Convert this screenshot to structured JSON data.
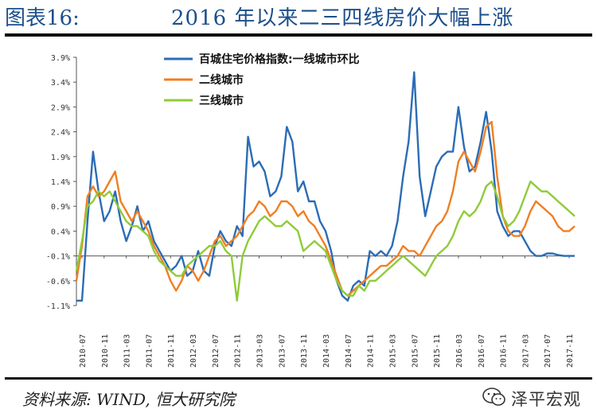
{
  "header": {
    "figure_number": "图表16:",
    "title": "2016 年以来二三四线房价大幅上涨"
  },
  "footer": {
    "source": "资料来源: WIND, 恒大研究院"
  },
  "brand": {
    "name": "泽平宏观",
    "icon": "wechat-icon"
  },
  "chart_data": {
    "type": "line",
    "title": "",
    "xlabel": "",
    "ylabel": "",
    "ylim": [
      -1.1,
      3.9
    ],
    "y_ticks": [
      3.9,
      3.4,
      2.9,
      2.4,
      1.9,
      1.4,
      0.9,
      0.4,
      -0.1,
      -0.6,
      -1.1
    ],
    "y_tick_labels": [
      "3.9%",
      "3.4%",
      "2.9%",
      "2.4%",
      "1.9%",
      "1.4%",
      "0.9%",
      "0.4%",
      "-0.1%",
      "-0.6%",
      "-1.1%"
    ],
    "x_ticks": [
      "2010-07",
      "2010-11",
      "2011-03",
      "2011-07",
      "2011-11",
      "2012-03",
      "2012-07",
      "2012-11",
      "2013-03",
      "2013-07",
      "2013-11",
      "2014-03",
      "2014-07",
      "2014-11",
      "2015-03",
      "2015-07",
      "2015-11",
      "2016-03",
      "2016-07",
      "2016-11",
      "2017-03",
      "2017-07",
      "2017-11"
    ],
    "x_start": "2010-06",
    "x_end": "2017-12",
    "legend_position": "top-center",
    "grid": false,
    "series": [
      {
        "name": "百城住宅价格指数:一线城市环比",
        "color": "#2b6cb5",
        "points": [
          [
            "2010-06",
            -1.0
          ],
          [
            "2010-07",
            -1.0
          ],
          [
            "2010-08",
            0.6
          ],
          [
            "2010-09",
            2.0
          ],
          [
            "2010-10",
            1.2
          ],
          [
            "2010-11",
            0.6
          ],
          [
            "2010-12",
            0.8
          ],
          [
            "2011-01",
            1.2
          ],
          [
            "2011-02",
            0.6
          ],
          [
            "2011-03",
            0.2
          ],
          [
            "2011-04",
            0.5
          ],
          [
            "2011-05",
            0.9
          ],
          [
            "2011-06",
            0.4
          ],
          [
            "2011-07",
            0.6
          ],
          [
            "2011-08",
            0.2
          ],
          [
            "2011-09",
            0.0
          ],
          [
            "2011-10",
            -0.2
          ],
          [
            "2011-11",
            -0.4
          ],
          [
            "2011-12",
            -0.3
          ],
          [
            "2012-01",
            -0.1
          ],
          [
            "2012-02",
            -0.5
          ],
          [
            "2012-03",
            -0.4
          ],
          [
            "2012-04",
            0.0
          ],
          [
            "2012-05",
            -0.4
          ],
          [
            "2012-06",
            -0.5
          ],
          [
            "2012-07",
            0.1
          ],
          [
            "2012-08",
            0.4
          ],
          [
            "2012-09",
            0.2
          ],
          [
            "2012-10",
            0.1
          ],
          [
            "2012-11",
            0.5
          ],
          [
            "2012-12",
            0.3
          ],
          [
            "2013-01",
            2.3
          ],
          [
            "2013-02",
            1.7
          ],
          [
            "2013-03",
            1.8
          ],
          [
            "2013-04",
            1.6
          ],
          [
            "2013-05",
            1.1
          ],
          [
            "2013-06",
            1.2
          ],
          [
            "2013-07",
            1.5
          ],
          [
            "2013-08",
            2.5
          ],
          [
            "2013-09",
            2.2
          ],
          [
            "2013-10",
            1.2
          ],
          [
            "2013-11",
            1.4
          ],
          [
            "2013-12",
            1.0
          ],
          [
            "2014-01",
            1.0
          ],
          [
            "2014-02",
            0.6
          ],
          [
            "2014-03",
            0.4
          ],
          [
            "2014-04",
            0.0
          ],
          [
            "2014-05",
            -0.6
          ],
          [
            "2014-06",
            -0.9
          ],
          [
            "2014-07",
            -1.0
          ],
          [
            "2014-08",
            -0.7
          ],
          [
            "2014-09",
            -0.6
          ],
          [
            "2014-10",
            -0.7
          ],
          [
            "2014-11",
            0.0
          ],
          [
            "2014-12",
            -0.1
          ],
          [
            "2015-01",
            0.0
          ],
          [
            "2015-02",
            -0.1
          ],
          [
            "2015-03",
            0.1
          ],
          [
            "2015-04",
            0.6
          ],
          [
            "2015-05",
            1.5
          ],
          [
            "2015-06",
            2.2
          ],
          [
            "2015-07",
            3.6
          ],
          [
            "2015-08",
            1.5
          ],
          [
            "2015-09",
            0.7
          ],
          [
            "2015-10",
            1.2
          ],
          [
            "2015-11",
            1.7
          ],
          [
            "2015-12",
            1.9
          ],
          [
            "2016-01",
            2.0
          ],
          [
            "2016-02",
            2.0
          ],
          [
            "2016-03",
            2.9
          ],
          [
            "2016-04",
            2.1
          ],
          [
            "2016-05",
            1.6
          ],
          [
            "2016-06",
            1.7
          ],
          [
            "2016-07",
            2.2
          ],
          [
            "2016-08",
            2.8
          ],
          [
            "2016-09",
            2.0
          ],
          [
            "2016-10",
            0.8
          ],
          [
            "2016-11",
            0.5
          ],
          [
            "2016-12",
            0.3
          ],
          [
            "2017-01",
            0.4
          ],
          [
            "2017-02",
            0.4
          ],
          [
            "2017-03",
            0.2
          ],
          [
            "2017-04",
            0.0
          ],
          [
            "2017-05",
            -0.1
          ],
          [
            "2017-06",
            -0.1
          ],
          [
            "2017-07",
            -0.05
          ],
          [
            "2017-08",
            -0.05
          ],
          [
            "2017-09",
            -0.08
          ],
          [
            "2017-10",
            -0.1
          ],
          [
            "2017-11",
            -0.1
          ],
          [
            "2017-12",
            -0.1
          ]
        ]
      },
      {
        "name": "二线城市",
        "color": "#f07f23",
        "points": [
          [
            "2010-06",
            -0.6
          ],
          [
            "2010-07",
            0.1
          ],
          [
            "2010-08",
            1.1
          ],
          [
            "2010-09",
            1.3
          ],
          [
            "2010-10",
            1.1
          ],
          [
            "2010-11",
            1.2
          ],
          [
            "2010-12",
            1.4
          ],
          [
            "2011-01",
            1.6
          ],
          [
            "2011-02",
            1.0
          ],
          [
            "2011-03",
            0.8
          ],
          [
            "2011-04",
            0.6
          ],
          [
            "2011-05",
            0.8
          ],
          [
            "2011-06",
            0.6
          ],
          [
            "2011-07",
            0.4
          ],
          [
            "2011-08",
            0.1
          ],
          [
            "2011-09",
            -0.1
          ],
          [
            "2011-10",
            -0.3
          ],
          [
            "2011-11",
            -0.6
          ],
          [
            "2011-12",
            -0.8
          ],
          [
            "2012-01",
            -0.6
          ],
          [
            "2012-02",
            -0.3
          ],
          [
            "2012-03",
            -0.4
          ],
          [
            "2012-04",
            -0.6
          ],
          [
            "2012-05",
            -0.4
          ],
          [
            "2012-06",
            -0.1
          ],
          [
            "2012-07",
            0.2
          ],
          [
            "2012-08",
            0.3
          ],
          [
            "2012-09",
            0.1
          ],
          [
            "2012-10",
            0.2
          ],
          [
            "2012-11",
            0.3
          ],
          [
            "2012-12",
            0.5
          ],
          [
            "2013-01",
            0.7
          ],
          [
            "2013-02",
            0.8
          ],
          [
            "2013-03",
            1.0
          ],
          [
            "2013-04",
            0.9
          ],
          [
            "2013-05",
            0.7
          ],
          [
            "2013-06",
            0.8
          ],
          [
            "2013-07",
            1.0
          ],
          [
            "2013-08",
            1.0
          ],
          [
            "2013-09",
            0.9
          ],
          [
            "2013-10",
            0.7
          ],
          [
            "2013-11",
            0.8
          ],
          [
            "2013-12",
            0.6
          ],
          [
            "2014-01",
            0.5
          ],
          [
            "2014-02",
            0.3
          ],
          [
            "2014-03",
            0.1
          ],
          [
            "2014-04",
            -0.2
          ],
          [
            "2014-05",
            -0.5
          ],
          [
            "2014-06",
            -0.8
          ],
          [
            "2014-07",
            -0.9
          ],
          [
            "2014-08",
            -0.8
          ],
          [
            "2014-09",
            -0.7
          ],
          [
            "2014-10",
            -0.6
          ],
          [
            "2014-11",
            -0.5
          ],
          [
            "2014-12",
            -0.4
          ],
          [
            "2015-01",
            -0.3
          ],
          [
            "2015-02",
            -0.3
          ],
          [
            "2015-03",
            -0.2
          ],
          [
            "2015-04",
            -0.1
          ],
          [
            "2015-05",
            0.1
          ],
          [
            "2015-06",
            0.0
          ],
          [
            "2015-07",
            0.0
          ],
          [
            "2015-08",
            -0.1
          ],
          [
            "2015-09",
            0.1
          ],
          [
            "2015-10",
            0.3
          ],
          [
            "2015-11",
            0.5
          ],
          [
            "2015-12",
            0.6
          ],
          [
            "2016-01",
            0.8
          ],
          [
            "2016-02",
            1.2
          ],
          [
            "2016-03",
            1.8
          ],
          [
            "2016-04",
            2.0
          ],
          [
            "2016-05",
            1.8
          ],
          [
            "2016-06",
            1.6
          ],
          [
            "2016-07",
            2.0
          ],
          [
            "2016-08",
            2.5
          ],
          [
            "2016-09",
            2.6
          ],
          [
            "2016-10",
            1.5
          ],
          [
            "2016-11",
            0.7
          ],
          [
            "2016-12",
            0.4
          ],
          [
            "2017-01",
            0.3
          ],
          [
            "2017-02",
            0.3
          ],
          [
            "2017-03",
            0.5
          ],
          [
            "2017-04",
            0.8
          ],
          [
            "2017-05",
            1.0
          ],
          [
            "2017-06",
            0.9
          ],
          [
            "2017-07",
            0.8
          ],
          [
            "2017-08",
            0.7
          ],
          [
            "2017-09",
            0.5
          ],
          [
            "2017-10",
            0.4
          ],
          [
            "2017-11",
            0.4
          ],
          [
            "2017-12",
            0.5
          ]
        ]
      },
      {
        "name": "三线城市",
        "color": "#8fcb3a",
        "points": [
          [
            "2010-06",
            -0.4
          ],
          [
            "2010-07",
            0.2
          ],
          [
            "2010-08",
            0.9
          ],
          [
            "2010-09",
            1.0
          ],
          [
            "2010-10",
            1.2
          ],
          [
            "2010-11",
            1.1
          ],
          [
            "2010-12",
            1.2
          ],
          [
            "2011-01",
            1.0
          ],
          [
            "2011-02",
            0.8
          ],
          [
            "2011-03",
            0.6
          ],
          [
            "2011-04",
            0.5
          ],
          [
            "2011-05",
            0.5
          ],
          [
            "2011-06",
            0.4
          ],
          [
            "2011-07",
            0.3
          ],
          [
            "2011-08",
            0.0
          ],
          [
            "2011-09",
            -0.2
          ],
          [
            "2011-10",
            -0.3
          ],
          [
            "2011-11",
            -0.4
          ],
          [
            "2011-12",
            -0.5
          ],
          [
            "2012-01",
            -0.5
          ],
          [
            "2012-02",
            -0.3
          ],
          [
            "2012-03",
            -0.2
          ],
          [
            "2012-04",
            -0.1
          ],
          [
            "2012-05",
            0.0
          ],
          [
            "2012-06",
            0.1
          ],
          [
            "2012-07",
            0.1
          ],
          [
            "2012-08",
            0.2
          ],
          [
            "2012-09",
            0.0
          ],
          [
            "2012-10",
            -0.1
          ],
          [
            "2012-11",
            -1.0
          ],
          [
            "2012-12",
            -0.1
          ],
          [
            "2013-01",
            0.2
          ],
          [
            "2013-02",
            0.4
          ],
          [
            "2013-03",
            0.6
          ],
          [
            "2013-04",
            0.7
          ],
          [
            "2013-05",
            0.6
          ],
          [
            "2013-06",
            0.5
          ],
          [
            "2013-07",
            0.5
          ],
          [
            "2013-08",
            0.6
          ],
          [
            "2013-09",
            0.5
          ],
          [
            "2013-10",
            0.4
          ],
          [
            "2013-11",
            0.0
          ],
          [
            "2013-12",
            0.1
          ],
          [
            "2014-01",
            0.2
          ],
          [
            "2014-02",
            0.1
          ],
          [
            "2014-03",
            0.0
          ],
          [
            "2014-04",
            -0.3
          ],
          [
            "2014-05",
            -0.6
          ],
          [
            "2014-06",
            -0.8
          ],
          [
            "2014-07",
            -0.9
          ],
          [
            "2014-08",
            -0.9
          ],
          [
            "2014-09",
            -0.7
          ],
          [
            "2014-10",
            -0.8
          ],
          [
            "2014-11",
            -0.6
          ],
          [
            "2014-12",
            -0.6
          ],
          [
            "2015-01",
            -0.5
          ],
          [
            "2015-02",
            -0.4
          ],
          [
            "2015-03",
            -0.3
          ],
          [
            "2015-04",
            -0.2
          ],
          [
            "2015-05",
            -0.1
          ],
          [
            "2015-06",
            -0.2
          ],
          [
            "2015-07",
            -0.3
          ],
          [
            "2015-08",
            -0.4
          ],
          [
            "2015-09",
            -0.5
          ],
          [
            "2015-10",
            -0.3
          ],
          [
            "2015-11",
            -0.1
          ],
          [
            "2015-12",
            0.0
          ],
          [
            "2016-01",
            0.1
          ],
          [
            "2016-02",
            0.3
          ],
          [
            "2016-03",
            0.6
          ],
          [
            "2016-04",
            0.8
          ],
          [
            "2016-05",
            0.7
          ],
          [
            "2016-06",
            0.8
          ],
          [
            "2016-07",
            1.0
          ],
          [
            "2016-08",
            1.3
          ],
          [
            "2016-09",
            1.4
          ],
          [
            "2016-10",
            1.1
          ],
          [
            "2016-11",
            0.7
          ],
          [
            "2016-12",
            0.5
          ],
          [
            "2017-01",
            0.6
          ],
          [
            "2017-02",
            0.8
          ],
          [
            "2017-03",
            1.1
          ],
          [
            "2017-04",
            1.4
          ],
          [
            "2017-05",
            1.3
          ],
          [
            "2017-06",
            1.2
          ],
          [
            "2017-07",
            1.2
          ],
          [
            "2017-08",
            1.1
          ],
          [
            "2017-09",
            1.0
          ],
          [
            "2017-10",
            0.9
          ],
          [
            "2017-11",
            0.8
          ],
          [
            "2017-12",
            0.7
          ]
        ]
      }
    ]
  }
}
